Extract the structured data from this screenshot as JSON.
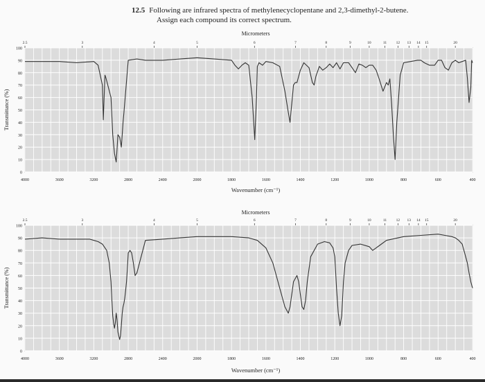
{
  "problem": {
    "number": "12.5",
    "line1": "Following are infrared spectra of methylenecyclopentane and 2,3-dimethyl-2-butene.",
    "line2": "Assign each compound its correct spectrum."
  },
  "chart_data": [
    {
      "type": "line",
      "top_axis_label": "Micrometers",
      "xlabel": "Wavenumber (cm⁻¹)",
      "ylabel": "Transmittance (%)",
      "xlim": [
        4000,
        400
      ],
      "ylim": [
        0,
        100
      ],
      "x_ticks": [
        "4000",
        "3600",
        "3200",
        "2800",
        "2400",
        "2000",
        "1800",
        "1600",
        "1400",
        "1200",
        "1000",
        "800",
        "600",
        "400"
      ],
      "y_ticks": [
        "0",
        "10",
        "20",
        "30",
        "40",
        "50",
        "60",
        "70",
        "80",
        "90",
        "100"
      ],
      "micrometer_ticks": [
        "2.5",
        "3",
        "4",
        "5",
        "6",
        "7",
        "8",
        "9",
        "10",
        "11",
        "12",
        "13",
        "14",
        "15",
        "20"
      ],
      "series": [
        {
          "x": [
            4000,
            3800,
            3600,
            3400,
            3200,
            3150,
            3100,
            3090,
            3080,
            3070,
            3060,
            3000,
            2980,
            2960,
            2940,
            2930,
            2920,
            2900,
            2880,
            2870,
            2860,
            2850,
            2800,
            2700,
            2600,
            2400,
            2200,
            2000,
            1900,
            1800,
            1780,
            1760,
            1740,
            1720,
            1700,
            1680,
            1665,
            1655,
            1650,
            1640,
            1620,
            1600,
            1560,
            1520,
            1490,
            1470,
            1460,
            1450,
            1440,
            1430,
            1420,
            1400,
            1380,
            1350,
            1330,
            1320,
            1310,
            1290,
            1270,
            1250,
            1230,
            1210,
            1190,
            1170,
            1150,
            1120,
            1100,
            1080,
            1060,
            1040,
            1020,
            1000,
            980,
            960,
            940,
            920,
            900,
            890,
            880,
            870,
            860,
            850,
            840,
            820,
            800,
            760,
            720,
            700,
            680,
            650,
            620,
            600,
            580,
            560,
            540,
            520,
            500,
            480,
            460,
            440,
            430,
            420,
            410,
            405,
            400
          ],
          "y": [
            89,
            89,
            89,
            88,
            89,
            86,
            70,
            42,
            60,
            78,
            76,
            60,
            30,
            15,
            8,
            18,
            30,
            28,
            20,
            30,
            40,
            48,
            90,
            91,
            90,
            90,
            91,
            92,
            91,
            90,
            86,
            83,
            86,
            88,
            86,
            60,
            26,
            60,
            85,
            88,
            86,
            89,
            88,
            85,
            65,
            48,
            40,
            55,
            70,
            72,
            72,
            82,
            88,
            84,
            72,
            70,
            77,
            85,
            82,
            84,
            87,
            84,
            88,
            83,
            88,
            88,
            84,
            80,
            87,
            86,
            84,
            86,
            86,
            82,
            74,
            65,
            72,
            70,
            75,
            55,
            30,
            10,
            40,
            78,
            88,
            89,
            90,
            90,
            88,
            86,
            86,
            90,
            90,
            84,
            82,
            88,
            90,
            88,
            89,
            90,
            76,
            56,
            68,
            90,
            88
          ]
        }
      ]
    },
    {
      "type": "line",
      "top_axis_label": "Micrometers",
      "xlabel": "Wavenumber (cm⁻¹)",
      "ylabel": "Transmittance (%)",
      "xlim": [
        4000,
        400
      ],
      "ylim": [
        0,
        100
      ],
      "x_ticks": [
        "4000",
        "3600",
        "3200",
        "2800",
        "2400",
        "2000",
        "1800",
        "1600",
        "1400",
        "1200",
        "1000",
        "800",
        "600",
        "400"
      ],
      "y_ticks": [
        "0",
        "10",
        "20",
        "30",
        "40",
        "50",
        "60",
        "70",
        "80",
        "90",
        "100"
      ],
      "micrometer_ticks": [
        "2.5",
        "3",
        "4",
        "5",
        "6",
        "7",
        "8",
        "9",
        "10",
        "11",
        "12",
        "13",
        "14",
        "15",
        "20"
      ],
      "series": [
        {
          "x": [
            4000,
            3800,
            3600,
            3400,
            3250,
            3200,
            3150,
            3100,
            3050,
            3020,
            3000,
            2990,
            2980,
            2970,
            2960,
            2950,
            2940,
            2930,
            2920,
            2910,
            2900,
            2890,
            2880,
            2870,
            2860,
            2850,
            2840,
            2830,
            2820,
            2810,
            2800,
            2780,
            2760,
            2740,
            2720,
            2700,
            2600,
            2400,
            2200,
            2000,
            1800,
            1700,
            1650,
            1600,
            1560,
            1520,
            1490,
            1470,
            1460,
            1450,
            1440,
            1420,
            1410,
            1400,
            1390,
            1380,
            1370,
            1360,
            1340,
            1300,
            1260,
            1230,
            1210,
            1200,
            1190,
            1180,
            1170,
            1160,
            1150,
            1140,
            1120,
            1100,
            1050,
            1000,
            980,
            960,
            940,
            900,
            800,
            700,
            600,
            560,
            520,
            500,
            480,
            460,
            450,
            440,
            430,
            420,
            410,
            400
          ],
          "y": [
            89,
            90,
            89,
            89,
            89,
            88,
            87,
            85,
            80,
            70,
            55,
            40,
            28,
            22,
            18,
            22,
            30,
            25,
            15,
            12,
            9,
            12,
            20,
            30,
            35,
            38,
            42,
            48,
            55,
            65,
            78,
            80,
            78,
            70,
            60,
            62,
            88,
            89,
            90,
            91,
            91,
            90,
            88,
            82,
            70,
            50,
            35,
            30,
            35,
            45,
            55,
            60,
            55,
            45,
            35,
            33,
            40,
            55,
            75,
            85,
            87,
            86,
            82,
            75,
            50,
            30,
            20,
            28,
            55,
            70,
            80,
            84,
            85,
            83,
            80,
            82,
            84,
            88,
            91,
            92,
            93,
            92,
            91,
            90,
            88,
            85,
            80,
            75,
            70,
            62,
            55,
            50
          ]
        }
      ]
    }
  ]
}
